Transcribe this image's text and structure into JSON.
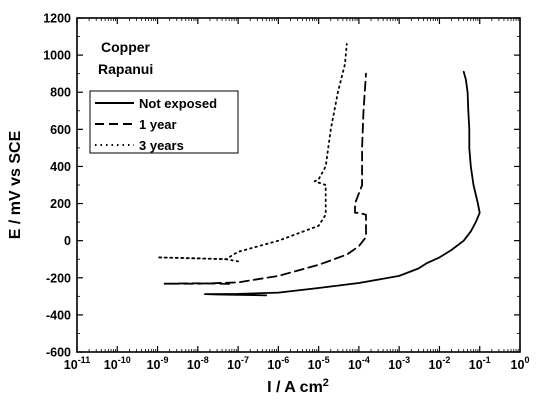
{
  "chart_data": {
    "type": "line",
    "title": "",
    "annotation": [
      "Copper",
      "Rapanui"
    ],
    "xlabel": "I / A cm",
    "xlabel_sup": "2",
    "ylabel": "E / mV vs SCE",
    "x_scale": "log",
    "xlim": [
      1e-11,
      1
    ],
    "ylim": [
      -600,
      1200
    ],
    "x_ticks": [
      -11,
      -10,
      -9,
      -8,
      -7,
      -6,
      -5,
      -4,
      -3,
      -2,
      -1,
      0
    ],
    "x_tick_labels": [
      "10-11",
      "10-10",
      "10-9",
      "10-8",
      "10-7",
      "10-6",
      "10-5",
      "10-4",
      "10-3",
      "10-2",
      "10-1",
      "100"
    ],
    "y_ticks": [
      -600,
      -400,
      -200,
      0,
      200,
      400,
      600,
      800,
      1000,
      1200
    ],
    "y_tick_labels": [
      "-600",
      "-400",
      "-200",
      "0",
      "200",
      "400",
      "600",
      "800",
      "1000",
      "1200"
    ],
    "grid": false,
    "legend_position": "top-left",
    "series": [
      {
        "name": "Not exposed",
        "style": "solid",
        "color": "#000000",
        "points": [
          [
            5e-07,
            -295
          ],
          [
            1e-07,
            -292
          ],
          [
            3e-08,
            -290
          ],
          [
            1.5e-08,
            -288
          ],
          [
            1e-07,
            -287
          ],
          [
            1e-06,
            -280
          ],
          [
            1e-05,
            -255
          ],
          [
            0.0001,
            -228
          ],
          [
            0.001,
            -190
          ],
          [
            0.003,
            -150
          ],
          [
            0.005,
            -120
          ],
          [
            0.01,
            -90
          ],
          [
            0.02,
            -50
          ],
          [
            0.04,
            0
          ],
          [
            0.06,
            50
          ],
          [
            0.08,
            100
          ],
          [
            0.1,
            150
          ],
          [
            0.09,
            200
          ],
          [
            0.07,
            300
          ],
          [
            0.06,
            400
          ],
          [
            0.055,
            500
          ],
          [
            0.055,
            600
          ],
          [
            0.052,
            700
          ],
          [
            0.05,
            800
          ],
          [
            0.045,
            870
          ],
          [
            0.04,
            910
          ]
        ]
      },
      {
        "name": "1 year",
        "style": "dashed",
        "color": "#000000",
        "points": [
          [
            6e-08,
            -233
          ],
          [
            1e-08,
            -230
          ],
          [
            1.5e-09,
            -232
          ],
          [
            1e-08,
            -232
          ],
          [
            1e-07,
            -225
          ],
          [
            1e-06,
            -190
          ],
          [
            1e-05,
            -130
          ],
          [
            5e-05,
            -75
          ],
          [
            0.0001,
            -30
          ],
          [
            0.00015,
            20
          ],
          [
            0.00015,
            80
          ],
          [
            0.00015,
            140
          ],
          [
            0.0001,
            150
          ],
          [
            8e-05,
            150
          ],
          [
            8e-05,
            200
          ],
          [
            0.00012,
            300
          ],
          [
            0.00012,
            500
          ],
          [
            0.00013,
            700
          ],
          [
            0.00015,
            900
          ]
        ]
      },
      {
        "name": "3 years",
        "style": "dotted",
        "color": "#000000",
        "points": [
          [
            1e-07,
            -112
          ],
          [
            5e-08,
            -100
          ],
          [
            1e-08,
            -95
          ],
          [
            1e-09,
            -90
          ],
          [
            5e-08,
            -100
          ],
          [
            1e-07,
            -60
          ],
          [
            1e-06,
            0
          ],
          [
            1e-05,
            80
          ],
          [
            1.5e-05,
            140
          ],
          [
            1.5e-05,
            300
          ],
          [
            8e-06,
            320
          ],
          [
            1e-05,
            330
          ],
          [
            1.5e-05,
            400
          ],
          [
            2e-05,
            600
          ],
          [
            3e-05,
            800
          ],
          [
            4.5e-05,
            950
          ],
          [
            5e-05,
            1060
          ]
        ]
      }
    ]
  }
}
